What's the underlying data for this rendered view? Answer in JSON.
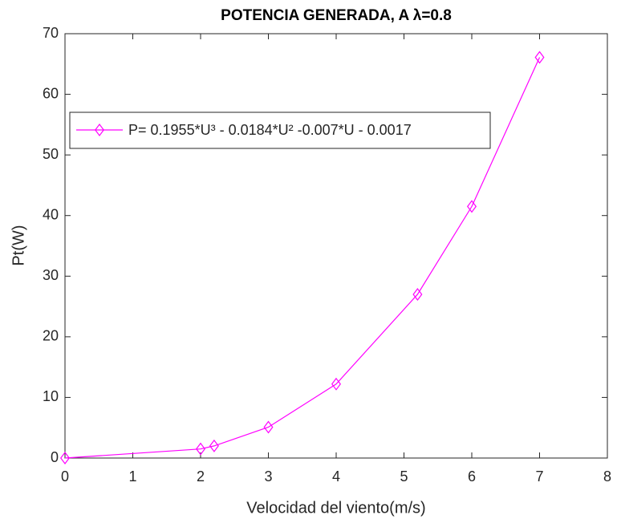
{
  "chart_data": {
    "type": "line",
    "title": "POTENCIA GENERADA, A λ=0.8",
    "x_label": "Velocidad del viento(m/s)",
    "y_label": "Pt(W)",
    "x": [
      0,
      2,
      2.2,
      3,
      4,
      5.2,
      6,
      7
    ],
    "series": [
      {
        "name": "P= 0.1955*U³ - 0.0184*U² -0.007*U - 0.0017",
        "color": "#ff00ff",
        "marker": "diamond",
        "values": [
          0,
          1.5,
          2.0,
          5.1,
          12.2,
          27.0,
          41.5,
          66.1
        ]
      }
    ],
    "xlim": [
      0,
      8
    ],
    "xticks": [
      0,
      1,
      2,
      3,
      4,
      5,
      6,
      7,
      8
    ],
    "ylim": [
      0,
      70
    ],
    "yticks": [
      0,
      10,
      20,
      30,
      40,
      50,
      60,
      70
    ],
    "grid": false
  }
}
